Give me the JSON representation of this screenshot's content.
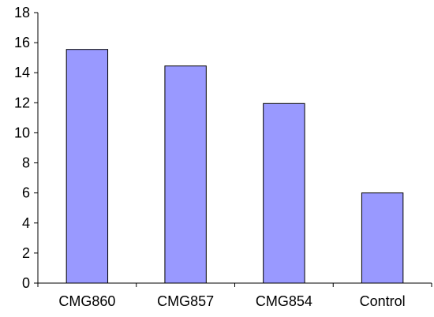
{
  "chart_data": {
    "type": "bar",
    "title": "",
    "xlabel": "",
    "ylabel": "",
    "categories": [
      "CMG860",
      "CMG857",
      "CMG854",
      "Control"
    ],
    "values": [
      15.55,
      14.45,
      11.95,
      6.0
    ],
    "ylim": [
      0,
      18
    ],
    "yticks": [
      0,
      2,
      4,
      6,
      8,
      10,
      12,
      14,
      16,
      18
    ],
    "grid": false,
    "legend": "none",
    "colors": {
      "bar_fill": "#9999ff",
      "bar_stroke": "#000000",
      "axis": "#000000"
    }
  }
}
